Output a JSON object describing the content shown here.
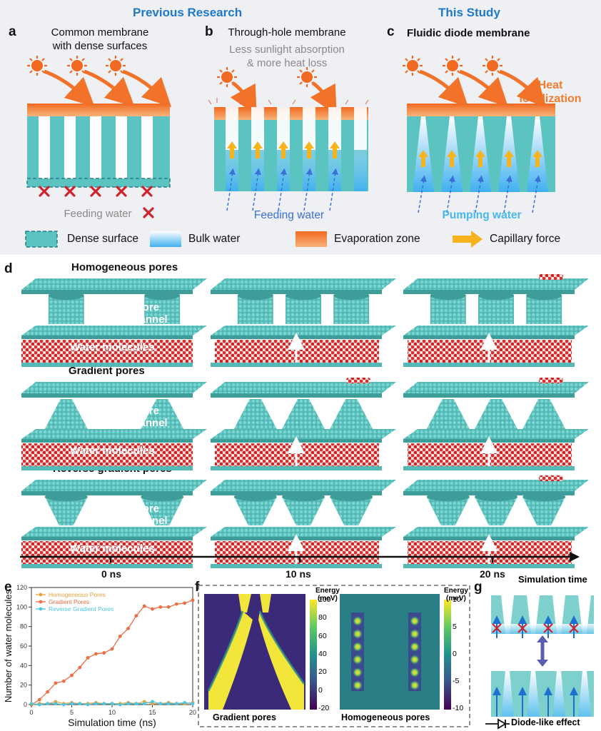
{
  "header": {
    "previous": "Previous Research",
    "this_study": "This Study"
  },
  "panel_a": {
    "label": "a",
    "title": "Common membrane\nwith dense surfaces",
    "feeding": "Feeding water"
  },
  "panel_b": {
    "label": "b",
    "title": "Through-hole membrane",
    "subtitle": "Less sunlight absorption\n& more heat loss",
    "feeding": "Feeding water"
  },
  "panel_c": {
    "label": "c",
    "title": "Fluidic diode membrane",
    "heat": "Heat\nlocalization",
    "pumping": "Pumping water"
  },
  "legend": {
    "dense": "Dense surface",
    "bulk": "Bulk water",
    "evap": "Evaporation zone",
    "capillary": "Capillary force"
  },
  "panel_d": {
    "label": "d",
    "rows": [
      {
        "title": "Homogeneous pores",
        "pore": "Pore\nchannel",
        "water": "Water molecules"
      },
      {
        "title": "Gradient pores",
        "pore": "Pore\nchannel",
        "water": "Water molecules"
      },
      {
        "title": "Reverse gradient pores",
        "pore": "Pore\nchannel",
        "water": "Water molecules"
      }
    ],
    "timeline": [
      "0 ns",
      "10 ns",
      "20 ns"
    ]
  },
  "panel_e": {
    "label": "e",
    "chart_data": {
      "type": "line",
      "xlabel": "Simulation time (ns)",
      "ylabel": "Number of water molecules",
      "xlim": [
        0,
        20
      ],
      "ylim": [
        0,
        120
      ],
      "xticks": [
        "0",
        "5",
        "10",
        "15",
        "20"
      ],
      "yticks": [
        "0",
        "20",
        "40",
        "60",
        "80",
        "100",
        "120"
      ],
      "legend_position": "top-left",
      "series": [
        {
          "name": "Homogeneous Pores",
          "color": "#e8a33c",
          "x": [
            0,
            1,
            2,
            3,
            4,
            5,
            6,
            7,
            8,
            9,
            10,
            11,
            12,
            13,
            14,
            15,
            16,
            17,
            18,
            19,
            20
          ],
          "y": [
            0,
            1,
            1,
            3,
            1,
            2,
            1,
            1,
            2,
            1,
            1,
            1,
            2,
            1,
            3,
            1,
            1,
            2,
            1,
            1,
            2
          ]
        },
        {
          "name": "Gradient Pores",
          "color": "#ef6d43",
          "x": [
            0,
            1,
            2,
            3,
            4,
            5,
            6,
            7,
            8,
            9,
            10,
            11,
            12,
            13,
            14,
            15,
            16,
            17,
            18,
            19,
            20
          ],
          "y": [
            0,
            5,
            13,
            22,
            24,
            30,
            38,
            48,
            52,
            53,
            57,
            70,
            78,
            91,
            101,
            98,
            100,
            100,
            103,
            104,
            107
          ]
        },
        {
          "name": "Reverse Gradient Pores",
          "color": "#4fc6df",
          "x": [
            0,
            1,
            2,
            3,
            4,
            5,
            6,
            7,
            8,
            9,
            10,
            11,
            12,
            13,
            14,
            15,
            16,
            17,
            18,
            19,
            20
          ],
          "y": [
            1,
            0,
            1,
            1,
            0,
            1,
            1,
            0,
            1,
            1,
            1,
            0,
            1,
            1,
            1,
            3,
            1,
            1,
            1,
            2,
            1
          ]
        }
      ]
    }
  },
  "panel_f": {
    "label": "f",
    "left": {
      "caption": "Gradient pores",
      "cbar_title": "Energy\n(meV)",
      "cbar_ticks": [
        "100",
        "80",
        "60",
        "40",
        "20",
        "0",
        "-20"
      ]
    },
    "right": {
      "caption": "Homogeneous pores",
      "cbar_title": "Energy\n(meV)",
      "cbar_ticks": [
        "10",
        "5",
        "0",
        "-5",
        "-10"
      ]
    }
  },
  "panel_g": {
    "label": "g",
    "title": "Simulation time",
    "diode": "Diode-like effect"
  },
  "colors": {
    "teal": "#5bc4c0",
    "orange": "#f27b2c",
    "blue_header": "#1f78c8",
    "red_x": "#d1232a",
    "yellow_arrow": "#f6b31d"
  }
}
